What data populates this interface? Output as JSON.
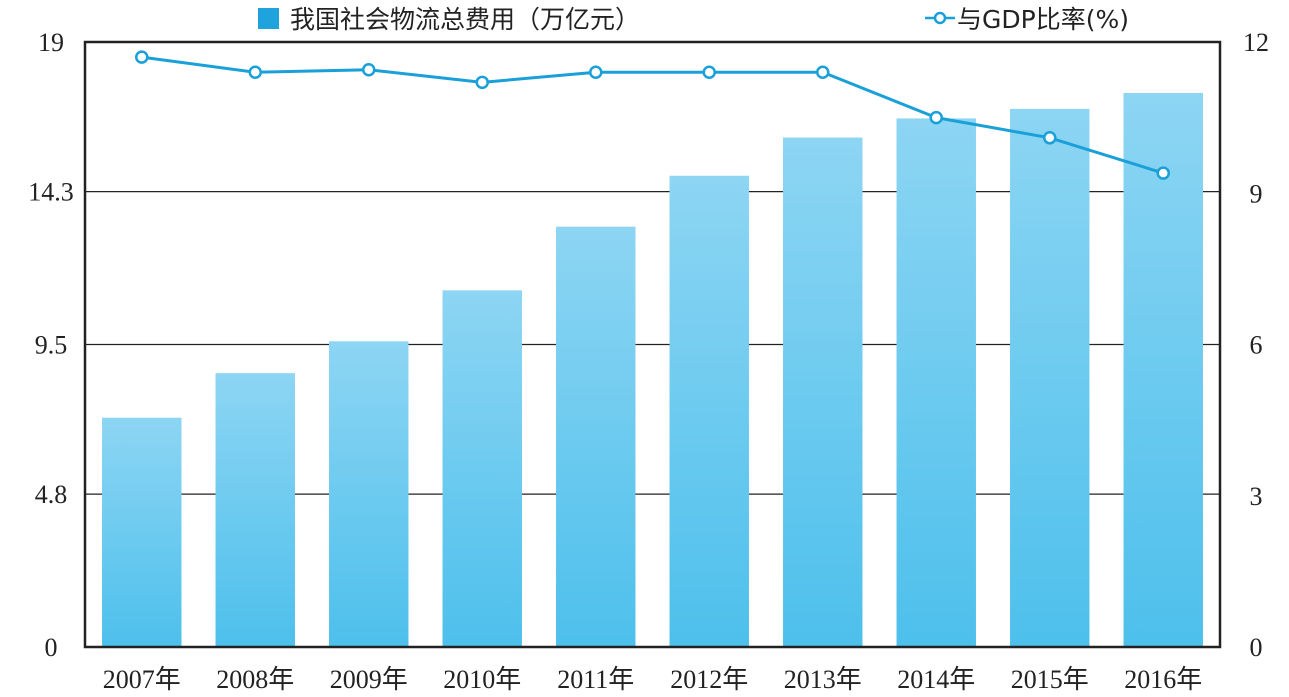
{
  "chart_data": {
    "type": "bar",
    "categories": [
      "2007年",
      "2008年",
      "2009年",
      "2010年",
      "2011年",
      "2012年",
      "2013年",
      "2014年",
      "2015年",
      "2016年"
    ],
    "series": [
      {
        "name": "我国社会物流总费用（万亿元）",
        "type": "bar",
        "axis": "left",
        "values": [
          7.2,
          8.6,
          9.6,
          11.2,
          13.2,
          14.8,
          16.0,
          16.6,
          16.9,
          17.4
        ]
      },
      {
        "name": "与GDP比率(%)",
        "type": "line",
        "axis": "right",
        "values": [
          11.7,
          11.4,
          11.45,
          11.2,
          11.4,
          11.4,
          11.4,
          10.5,
          10.1,
          9.4
        ]
      }
    ],
    "y_left": {
      "ticks": [
        "0",
        "4.8",
        "9.5",
        "14.3",
        "19"
      ],
      "range": [
        0,
        19
      ]
    },
    "y_right": {
      "ticks": [
        "0",
        "3",
        "6",
        "9",
        "12"
      ],
      "range": [
        0,
        12
      ]
    },
    "grid": true,
    "legend": "top",
    "colors": {
      "bar": "#4dc0ec",
      "bar_light": "#8dd5f3",
      "line": "#1aa0d8",
      "legend_bar": "#1ea3dc"
    }
  }
}
